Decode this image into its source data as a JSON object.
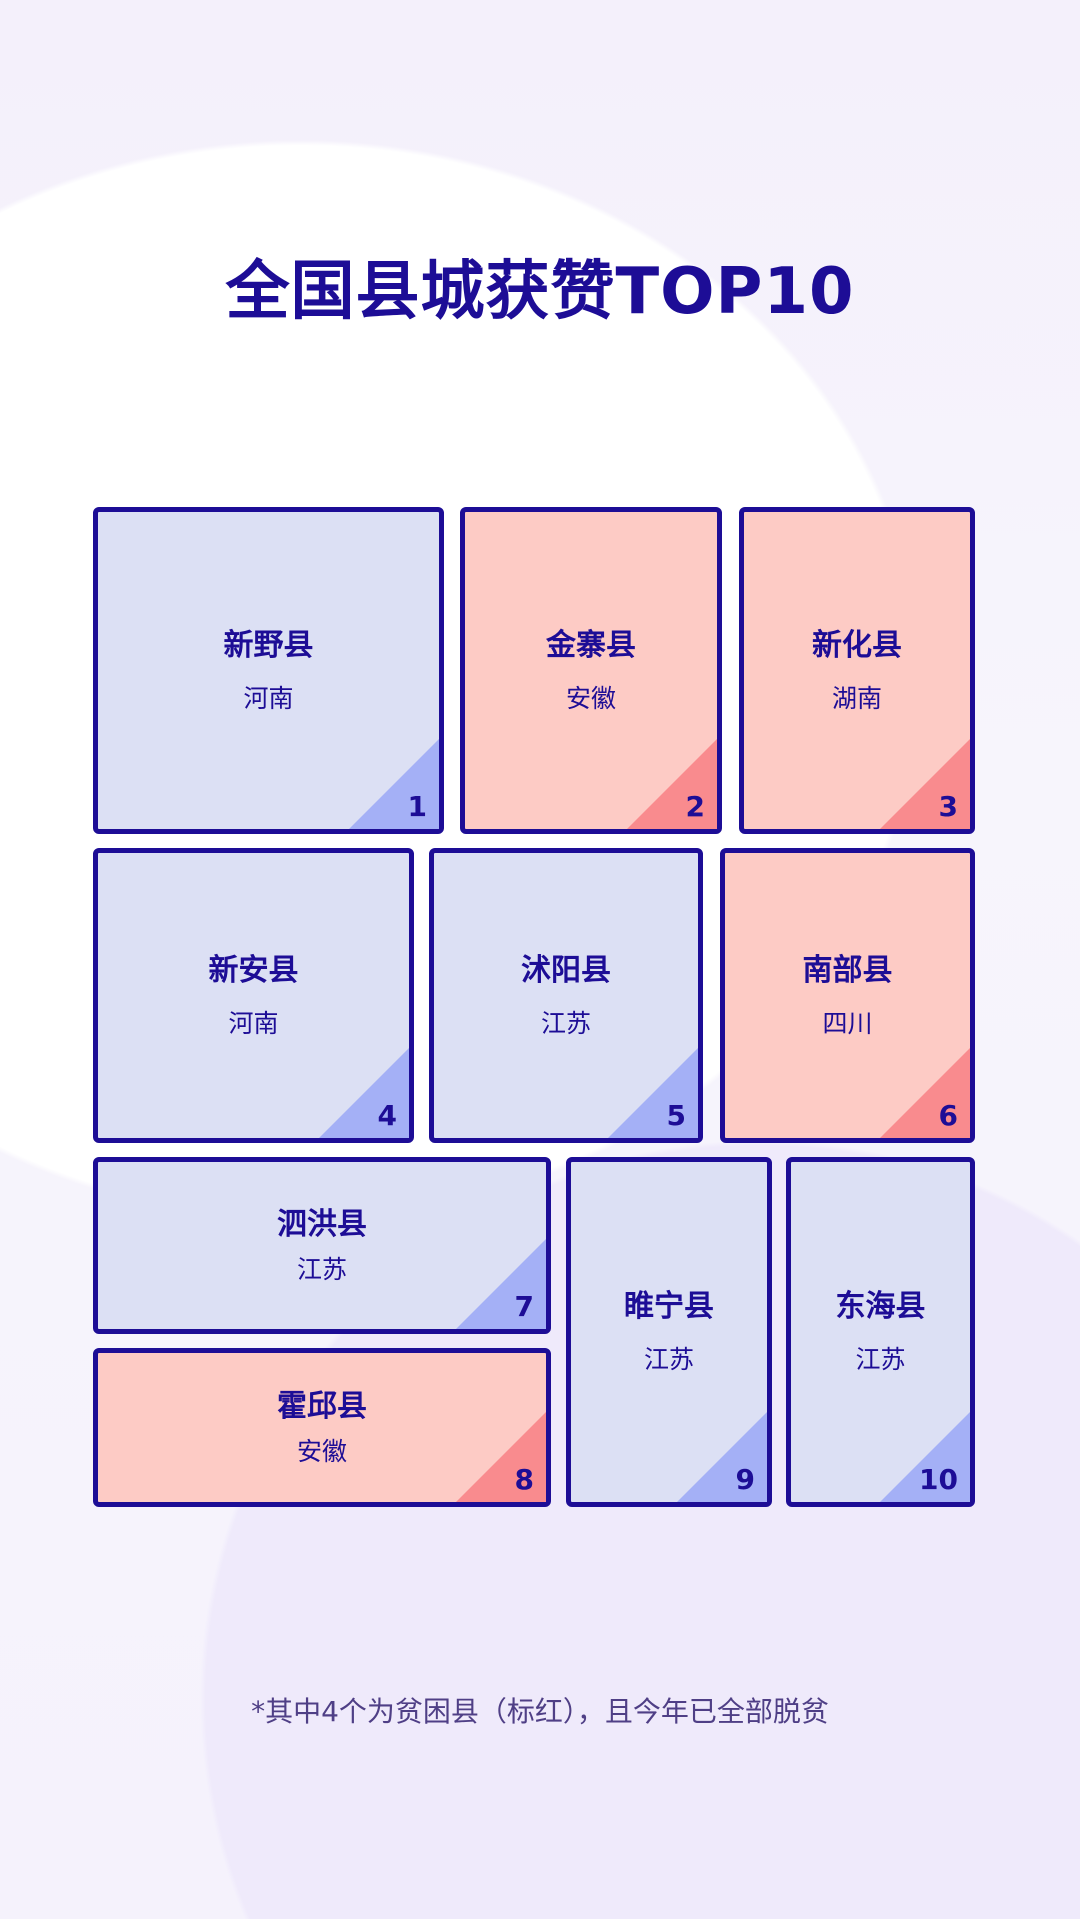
{
  "title": "全国县城获赞TOP10",
  "colors": {
    "border": "#1d0d96",
    "poverty_fill": "#fdcbc5",
    "normal_fill": "#dce0f4",
    "poverty_corner": "#f98b8e",
    "normal_corner": "#a4b0f6"
  },
  "counties": [
    {
      "rank": "1",
      "name": "新野县",
      "province": "河南",
      "poverty": false
    },
    {
      "rank": "2",
      "name": "金寨县",
      "province": "安徽",
      "poverty": true
    },
    {
      "rank": "3",
      "name": "新化县",
      "province": "湖南",
      "poverty": true
    },
    {
      "rank": "4",
      "name": "新安县",
      "province": "河南",
      "poverty": false
    },
    {
      "rank": "5",
      "name": "沭阳县",
      "province": "江苏",
      "poverty": false
    },
    {
      "rank": "6",
      "name": "南部县",
      "province": "四川",
      "poverty": true
    },
    {
      "rank": "7",
      "name": "泗洪县",
      "province": "江苏",
      "poverty": false
    },
    {
      "rank": "8",
      "name": "霍邱县",
      "province": "安徽",
      "poverty": true
    },
    {
      "rank": "9",
      "name": "睢宁县",
      "province": "江苏",
      "poverty": false
    },
    {
      "rank": "10",
      "name": "东海县",
      "province": "江苏",
      "poverty": false
    }
  ],
  "footnote": "*其中4个为贫困县（标红），且今年已全部脱贫"
}
